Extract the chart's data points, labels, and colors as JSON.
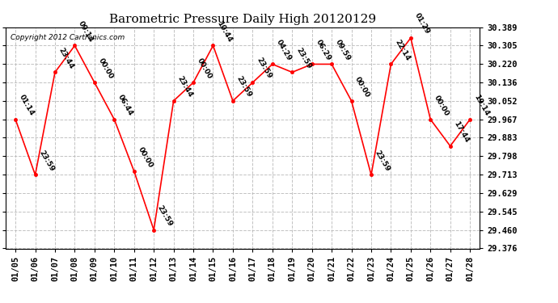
{
  "title": "Barometric Pressure Daily High 20120129",
  "copyright": "Copyright 2012 Cartronics.com",
  "x_labels": [
    "01/05",
    "01/06",
    "01/07",
    "01/08",
    "01/09",
    "01/10",
    "01/11",
    "01/12",
    "01/13",
    "01/14",
    "01/15",
    "01/16",
    "01/17",
    "01/18",
    "01/19",
    "01/20",
    "01/21",
    "01/22",
    "01/23",
    "01/24",
    "01/25",
    "01/26",
    "01/27",
    "01/28"
  ],
  "y_values": [
    29.967,
    29.713,
    30.183,
    30.305,
    30.136,
    29.967,
    29.73,
    29.461,
    30.052,
    30.136,
    30.305,
    30.052,
    30.136,
    30.22,
    30.183,
    30.22,
    30.22,
    30.052,
    29.713,
    30.22,
    30.34,
    29.967,
    29.845,
    29.967
  ],
  "point_labels": [
    "01:14",
    "23:59",
    "23:44",
    "09:14",
    "00:00",
    "06:44",
    "00:00",
    "23:59",
    "23:44",
    "00:00",
    "10:44",
    "23:59",
    "23:59",
    "04:29",
    "23:59",
    "06:29",
    "09:59",
    "00:00",
    "23:59",
    "22:14",
    "01:29",
    "00:00",
    "17:44",
    "19:14"
  ],
  "line_color": "#ff0000",
  "marker_color": "#ff0000",
  "bg_color": "#ffffff",
  "grid_color": "#bbbbbb",
  "ylim_min": 29.376,
  "ylim_max": 30.389,
  "yticks": [
    29.376,
    29.46,
    29.545,
    29.629,
    29.713,
    29.798,
    29.883,
    29.967,
    30.052,
    30.136,
    30.22,
    30.305,
    30.389
  ],
  "title_fontsize": 11,
  "label_fontsize": 6.5,
  "tick_fontsize": 7.5
}
